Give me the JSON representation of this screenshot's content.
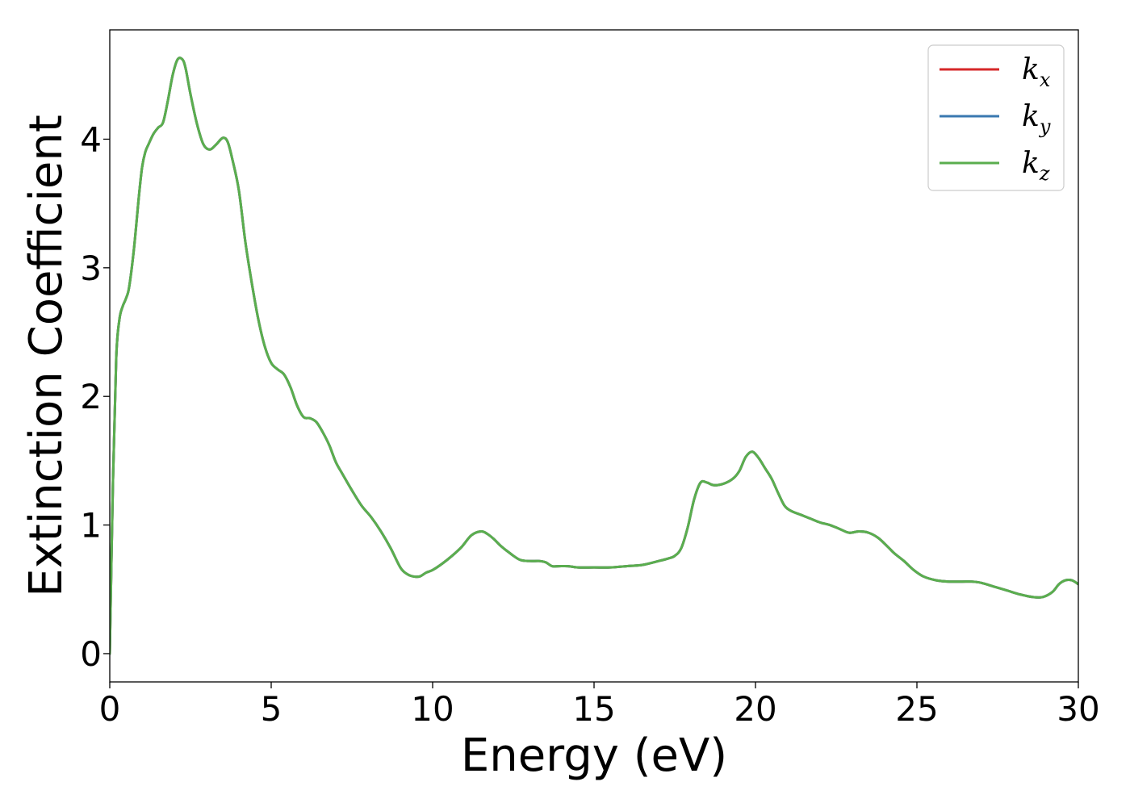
{
  "chart_data": {
    "type": "line",
    "title": "",
    "xlabel": "Energy (eV)",
    "ylabel": "Extinction Coefficient",
    "xlim": [
      0,
      30
    ],
    "ylim": [
      -0.22,
      4.85
    ],
    "x_ticks": [
      0,
      5,
      10,
      15,
      20,
      25,
      30
    ],
    "x_tick_labels": [
      "0",
      "5",
      "10",
      "15",
      "20",
      "25",
      "30"
    ],
    "y_ticks": [
      0,
      1,
      2,
      3,
      4
    ],
    "y_tick_labels": [
      "0",
      "1",
      "2",
      "3",
      "4"
    ],
    "grid": false,
    "legend_position": "top-right",
    "legend": [
      {
        "base": "k",
        "sub": "x",
        "color": "#d62728"
      },
      {
        "base": "k",
        "sub": "y",
        "color": "#3a78b0"
      },
      {
        "base": "k",
        "sub": "z",
        "color": "#5aae4e"
      }
    ],
    "x": [
      0,
      0.1,
      0.2,
      0.3,
      0.4,
      0.5,
      0.6,
      0.75,
      0.9,
      1.0,
      1.1,
      1.2,
      1.35,
      1.5,
      1.65,
      1.8,
      1.95,
      2.1,
      2.25,
      2.35,
      2.5,
      2.7,
      2.9,
      3.1,
      3.3,
      3.5,
      3.65,
      3.8,
      4.0,
      4.2,
      4.4,
      4.6,
      4.8,
      5.0,
      5.2,
      5.4,
      5.6,
      5.8,
      6.0,
      6.2,
      6.4,
      6.6,
      6.8,
      7.0,
      7.2,
      7.5,
      7.8,
      8.1,
      8.4,
      8.7,
      9.0,
      9.2,
      9.4,
      9.6,
      9.8,
      10.0,
      10.3,
      10.6,
      10.9,
      11.2,
      11.5,
      11.7,
      11.9,
      12.1,
      12.4,
      12.7,
      13.0,
      13.3,
      13.5,
      13.7,
      13.9,
      14.2,
      14.5,
      15.0,
      15.5,
      16.0,
      16.5,
      17.0,
      17.3,
      17.5,
      17.7,
      17.9,
      18.1,
      18.3,
      18.5,
      18.7,
      19.0,
      19.3,
      19.5,
      19.7,
      19.9,
      20.1,
      20.3,
      20.5,
      20.7,
      20.9,
      21.1,
      21.4,
      21.7,
      22.0,
      22.3,
      22.6,
      22.9,
      23.2,
      23.5,
      23.8,
      24.1,
      24.3,
      24.6,
      24.9,
      25.2,
      25.6,
      26.0,
      26.4,
      26.7,
      27.0,
      27.4,
      27.8,
      28.2,
      28.6,
      28.9,
      29.2,
      29.4,
      29.6,
      29.8,
      30.0
    ],
    "series": [
      {
        "name": "k_x",
        "color": "#d62728",
        "values": [
          0.0,
          1.35,
          2.3,
          2.6,
          2.7,
          2.76,
          2.85,
          3.15,
          3.55,
          3.78,
          3.9,
          3.96,
          4.04,
          4.09,
          4.13,
          4.3,
          4.5,
          4.62,
          4.62,
          4.55,
          4.35,
          4.12,
          3.96,
          3.92,
          3.96,
          4.01,
          3.98,
          3.84,
          3.6,
          3.2,
          2.88,
          2.6,
          2.39,
          2.26,
          2.21,
          2.17,
          2.07,
          1.93,
          1.84,
          1.83,
          1.8,
          1.72,
          1.62,
          1.49,
          1.4,
          1.27,
          1.15,
          1.06,
          0.95,
          0.82,
          0.67,
          0.62,
          0.6,
          0.6,
          0.63,
          0.65,
          0.7,
          0.76,
          0.83,
          0.92,
          0.95,
          0.93,
          0.89,
          0.84,
          0.78,
          0.73,
          0.72,
          0.72,
          0.71,
          0.68,
          0.68,
          0.68,
          0.67,
          0.67,
          0.67,
          0.68,
          0.69,
          0.72,
          0.74,
          0.76,
          0.82,
          0.98,
          1.2,
          1.33,
          1.33,
          1.31,
          1.32,
          1.36,
          1.42,
          1.53,
          1.57,
          1.52,
          1.44,
          1.36,
          1.25,
          1.15,
          1.11,
          1.08,
          1.05,
          1.02,
          1.0,
          0.97,
          0.94,
          0.95,
          0.94,
          0.9,
          0.83,
          0.78,
          0.72,
          0.65,
          0.6,
          0.57,
          0.56,
          0.56,
          0.56,
          0.55,
          0.52,
          0.49,
          0.46,
          0.44,
          0.44,
          0.48,
          0.54,
          0.57,
          0.57,
          0.54
        ]
      },
      {
        "name": "k_y",
        "color": "#3a78b0",
        "values": [
          0.0,
          1.35,
          2.3,
          2.6,
          2.7,
          2.76,
          2.85,
          3.15,
          3.55,
          3.78,
          3.9,
          3.96,
          4.04,
          4.09,
          4.13,
          4.3,
          4.5,
          4.62,
          4.62,
          4.55,
          4.35,
          4.12,
          3.96,
          3.92,
          3.96,
          4.01,
          3.98,
          3.84,
          3.6,
          3.2,
          2.88,
          2.6,
          2.39,
          2.26,
          2.21,
          2.17,
          2.07,
          1.93,
          1.84,
          1.83,
          1.8,
          1.72,
          1.62,
          1.49,
          1.4,
          1.27,
          1.15,
          1.06,
          0.95,
          0.82,
          0.67,
          0.62,
          0.6,
          0.6,
          0.63,
          0.65,
          0.7,
          0.76,
          0.83,
          0.92,
          0.95,
          0.93,
          0.89,
          0.84,
          0.78,
          0.73,
          0.72,
          0.72,
          0.71,
          0.68,
          0.68,
          0.68,
          0.67,
          0.67,
          0.67,
          0.68,
          0.69,
          0.72,
          0.74,
          0.76,
          0.82,
          0.98,
          1.2,
          1.33,
          1.33,
          1.31,
          1.32,
          1.36,
          1.42,
          1.53,
          1.57,
          1.52,
          1.44,
          1.36,
          1.25,
          1.15,
          1.11,
          1.08,
          1.05,
          1.02,
          1.0,
          0.97,
          0.94,
          0.95,
          0.94,
          0.9,
          0.83,
          0.78,
          0.72,
          0.65,
          0.6,
          0.57,
          0.56,
          0.56,
          0.56,
          0.55,
          0.52,
          0.49,
          0.46,
          0.44,
          0.44,
          0.48,
          0.54,
          0.57,
          0.57,
          0.54
        ]
      },
      {
        "name": "k_z",
        "color": "#5aae4e",
        "values": [
          0.0,
          1.35,
          2.3,
          2.6,
          2.7,
          2.76,
          2.85,
          3.15,
          3.55,
          3.78,
          3.9,
          3.96,
          4.04,
          4.09,
          4.13,
          4.3,
          4.5,
          4.62,
          4.62,
          4.55,
          4.35,
          4.12,
          3.96,
          3.92,
          3.96,
          4.01,
          3.98,
          3.84,
          3.6,
          3.2,
          2.88,
          2.6,
          2.39,
          2.26,
          2.21,
          2.17,
          2.07,
          1.93,
          1.84,
          1.83,
          1.8,
          1.72,
          1.62,
          1.49,
          1.4,
          1.27,
          1.15,
          1.06,
          0.95,
          0.82,
          0.67,
          0.62,
          0.6,
          0.6,
          0.63,
          0.65,
          0.7,
          0.76,
          0.83,
          0.92,
          0.95,
          0.93,
          0.89,
          0.84,
          0.78,
          0.73,
          0.72,
          0.72,
          0.71,
          0.68,
          0.68,
          0.68,
          0.67,
          0.67,
          0.67,
          0.68,
          0.69,
          0.72,
          0.74,
          0.76,
          0.82,
          0.98,
          1.2,
          1.33,
          1.33,
          1.31,
          1.32,
          1.36,
          1.42,
          1.53,
          1.57,
          1.52,
          1.44,
          1.36,
          1.25,
          1.15,
          1.11,
          1.08,
          1.05,
          1.02,
          1.0,
          0.97,
          0.94,
          0.95,
          0.94,
          0.9,
          0.83,
          0.78,
          0.72,
          0.65,
          0.6,
          0.57,
          0.56,
          0.56,
          0.56,
          0.55,
          0.52,
          0.49,
          0.46,
          0.44,
          0.44,
          0.48,
          0.54,
          0.57,
          0.57,
          0.54
        ]
      }
    ]
  }
}
